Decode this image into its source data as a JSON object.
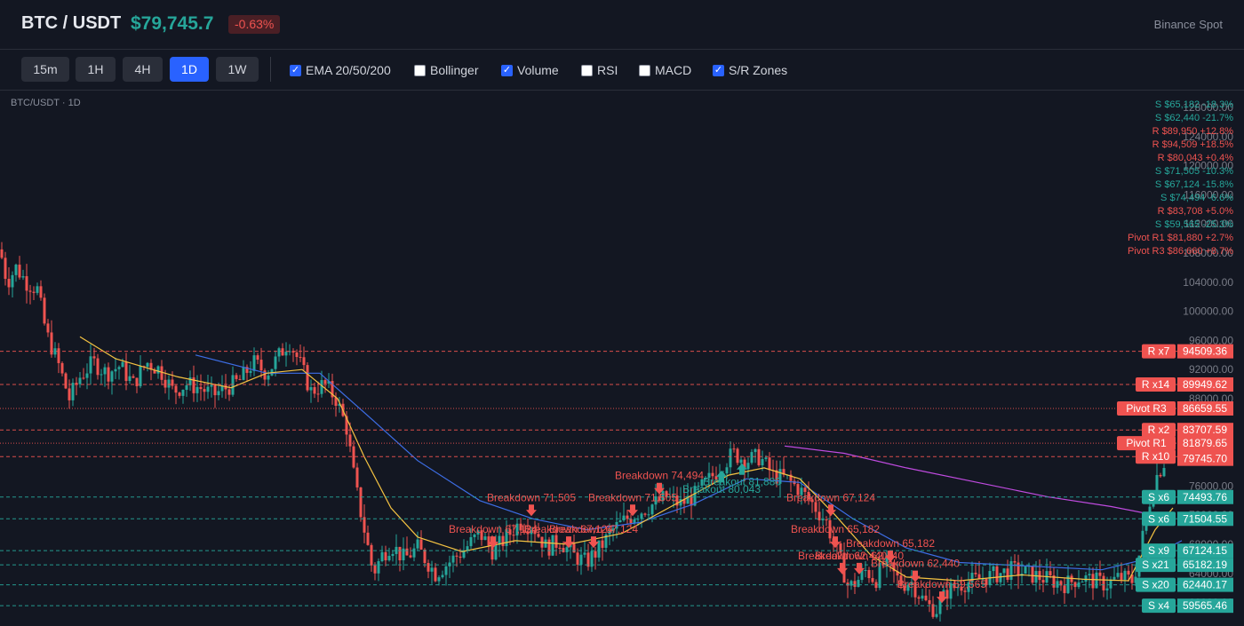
{
  "header": {
    "pair": "BTC / USDT",
    "price": "$79,745.7",
    "change": "-0.63%",
    "exchange": "Binance Spot"
  },
  "toolbar": {
    "timeframes": [
      {
        "label": "15m",
        "active": false
      },
      {
        "label": "1H",
        "active": false
      },
      {
        "label": "4H",
        "active": false
      },
      {
        "label": "1D",
        "active": true
      },
      {
        "label": "1W",
        "active": false
      }
    ],
    "indicators": [
      {
        "label": "EMA 20/50/200",
        "checked": true
      },
      {
        "label": "Bollinger",
        "checked": false
      },
      {
        "label": "Volume",
        "checked": true
      },
      {
        "label": "RSI",
        "checked": false
      },
      {
        "label": "MACD",
        "checked": false
      },
      {
        "label": "S/R Zones",
        "checked": true
      }
    ]
  },
  "chart_label": "BTC/USDT · 1D",
  "colors": {
    "up": "#26a69a",
    "down": "#ef5350",
    "ema20": "#f5c342",
    "ema50": "#3d6ee6",
    "ema200": "#c04be0",
    "background": "#131722"
  },
  "chart_data": {
    "type": "candlestick",
    "yticks": [
      128000,
      124000,
      120000,
      116000,
      112000,
      108000,
      104000,
      100000,
      96000,
      92000,
      88000,
      84000,
      80000,
      76000,
      72000,
      68000,
      64000,
      60000
    ],
    "ytick_labels": [
      "128000.00",
      "124000.00",
      "120000.00",
      "116000.00",
      "112000.00",
      "108000.00",
      "104000.00",
      "100000.00",
      "96000.00",
      "92000.00",
      "88000.00",
      "84000.00",
      "80000.00",
      "76000.00",
      "72000.00",
      "68000.00",
      "64000.00",
      "60000.00"
    ],
    "last_price": 79745.7,
    "last_price_label": "79745.70",
    "close_path": [
      [
        0,
        108500
      ],
      [
        8,
        104000
      ],
      [
        18,
        106000
      ],
      [
        30,
        104000
      ],
      [
        42,
        103000
      ],
      [
        52,
        97000
      ],
      [
        65,
        93000
      ],
      [
        78,
        88000
      ],
      [
        90,
        91000
      ],
      [
        105,
        93000
      ],
      [
        120,
        91500
      ],
      [
        135,
        92500
      ],
      [
        150,
        90000
      ],
      [
        165,
        93000
      ],
      [
        180,
        92000
      ],
      [
        195,
        89000
      ],
      [
        210,
        90000
      ],
      [
        225,
        89500
      ],
      [
        240,
        88500
      ],
      [
        255,
        89500
      ],
      [
        270,
        90500
      ],
      [
        285,
        93000
      ],
      [
        300,
        91500
      ],
      [
        312,
        93500
      ],
      [
        325,
        96000
      ],
      [
        337,
        93000
      ],
      [
        350,
        89000
      ],
      [
        365,
        90000
      ],
      [
        378,
        88000
      ],
      [
        390,
        84000
      ],
      [
        400,
        76000
      ],
      [
        410,
        70000
      ],
      [
        420,
        64000
      ],
      [
        430,
        66500
      ],
      [
        440,
        68000
      ],
      [
        455,
        66000
      ],
      [
        470,
        67500
      ],
      [
        490,
        64000
      ],
      [
        505,
        65500
      ],
      [
        520,
        67000
      ],
      [
        540,
        69500
      ],
      [
        555,
        67000
      ],
      [
        570,
        69000
      ],
      [
        585,
        71000
      ],
      [
        600,
        70500
      ],
      [
        615,
        67500
      ],
      [
        630,
        68500
      ],
      [
        645,
        66500
      ],
      [
        660,
        65500
      ],
      [
        675,
        67500
      ],
      [
        690,
        70000
      ],
      [
        705,
        71500
      ],
      [
        720,
        72500
      ],
      [
        735,
        73500
      ],
      [
        750,
        74500
      ],
      [
        765,
        73500
      ],
      [
        780,
        74500
      ],
      [
        795,
        76500
      ],
      [
        810,
        78500
      ],
      [
        825,
        80500
      ],
      [
        840,
        79500
      ],
      [
        855,
        80000
      ],
      [
        870,
        77500
      ],
      [
        885,
        77000
      ],
      [
        900,
        75500
      ],
      [
        915,
        73500
      ],
      [
        930,
        71000
      ],
      [
        945,
        66000
      ],
      [
        955,
        62000
      ],
      [
        965,
        63000
      ],
      [
        975,
        64500
      ],
      [
        985,
        63000
      ],
      [
        995,
        65500
      ],
      [
        1005,
        64000
      ],
      [
        1015,
        62500
      ],
      [
        1025,
        63000
      ],
      [
        1035,
        61000
      ],
      [
        1045,
        59500
      ],
      [
        1055,
        59000
      ],
      [
        1065,
        61500
      ],
      [
        1080,
        62500
      ],
      [
        1095,
        63000
      ],
      [
        1110,
        63500
      ],
      [
        1125,
        64000
      ],
      [
        1140,
        64500
      ],
      [
        1155,
        64000
      ],
      [
        1170,
        63500
      ],
      [
        1185,
        63000
      ],
      [
        1200,
        62500
      ],
      [
        1215,
        63500
      ],
      [
        1230,
        63000
      ],
      [
        1245,
        62500
      ],
      [
        1260,
        63500
      ],
      [
        1275,
        63000
      ],
      [
        1283,
        67000
      ],
      [
        1292,
        73000
      ],
      [
        1300,
        77000
      ],
      [
        1312,
        79745.7
      ]
    ],
    "ema20": [
      [
        90,
        96500
      ],
      [
        130,
        93500
      ],
      [
        200,
        91000
      ],
      [
        260,
        89500
      ],
      [
        300,
        91500
      ],
      [
        340,
        92000
      ],
      [
        380,
        88000
      ],
      [
        410,
        80000
      ],
      [
        440,
        73000
      ],
      [
        470,
        69000
      ],
      [
        520,
        67000
      ],
      [
        580,
        68500
      ],
      [
        640,
        68000
      ],
      [
        700,
        69500
      ],
      [
        760,
        73500
      ],
      [
        820,
        77500
      ],
      [
        860,
        78500
      ],
      [
        900,
        77000
      ],
      [
        940,
        72000
      ],
      [
        980,
        66500
      ],
      [
        1020,
        63500
      ],
      [
        1080,
        63000
      ],
      [
        1150,
        63800
      ],
      [
        1220,
        63200
      ],
      [
        1270,
        63000
      ],
      [
        1300,
        70000
      ],
      [
        1320,
        73000
      ]
    ],
    "ema50": [
      [
        220,
        94000
      ],
      [
        300,
        91500
      ],
      [
        360,
        91500
      ],
      [
        420,
        85000
      ],
      [
        470,
        79500
      ],
      [
        540,
        74000
      ],
      [
        600,
        71500
      ],
      [
        660,
        70000
      ],
      [
        720,
        71000
      ],
      [
        780,
        73500
      ],
      [
        840,
        77000
      ],
      [
        900,
        76500
      ],
      [
        960,
        71500
      ],
      [
        1020,
        67500
      ],
      [
        1080,
        65500
      ],
      [
        1160,
        65000
      ],
      [
        1240,
        64500
      ],
      [
        1290,
        66000
      ],
      [
        1330,
        68500
      ]
    ],
    "ema200": [
      [
        883,
        81500
      ],
      [
        950,
        80500
      ],
      [
        1020,
        78500
      ],
      [
        1100,
        76500
      ],
      [
        1180,
        74500
      ],
      [
        1250,
        73200
      ],
      [
        1300,
        72000
      ]
    ],
    "sr_levels": [
      {
        "price": 94509.36,
        "price_label": "94509.36",
        "tag": "R x7",
        "kind": "R"
      },
      {
        "price": 89949.62,
        "price_label": "89949.62",
        "tag": "R x14",
        "kind": "R"
      },
      {
        "price": 86659.55,
        "price_label": "86659.55",
        "tag": "Pivot R3",
        "kind": "P"
      },
      {
        "price": 83707.59,
        "price_label": "83707.59",
        "tag": "R x2",
        "kind": "R"
      },
      {
        "price": 81879.65,
        "price_label": "81879.65",
        "tag": "Pivot R1",
        "kind": "P"
      },
      {
        "price": 80042.83,
        "price_label": "80042.83",
        "tag": "R x10",
        "kind": "R"
      },
      {
        "price": 74493.76,
        "price_label": "74493.76",
        "tag": "S x6",
        "kind": "S"
      },
      {
        "price": 71504.55,
        "price_label": "71504.55",
        "tag": "S x6",
        "kind": "S"
      },
      {
        "price": 67124.15,
        "price_label": "67124.15",
        "tag": "S x9",
        "kind": "S"
      },
      {
        "price": 65182.19,
        "price_label": "65182.19",
        "tag": "S x21",
        "kind": "S"
      },
      {
        "price": 62440.17,
        "price_label": "62440.17",
        "tag": "S x20",
        "kind": "S"
      },
      {
        "price": 59565.46,
        "price_label": "59565.46",
        "tag": "S x4",
        "kind": "S"
      }
    ],
    "zone_list": [
      {
        "text": "S $65,182 -18.3%",
        "kind": "S"
      },
      {
        "text": "S $62,440 -21.7%",
        "kind": "S"
      },
      {
        "text": "R $89,950 +12.8%",
        "kind": "R"
      },
      {
        "text": "R $94,509 +18.5%",
        "kind": "R"
      },
      {
        "text": "R $80,043 +0.4%",
        "kind": "R"
      },
      {
        "text": "S $71,505 -10.3%",
        "kind": "S"
      },
      {
        "text": "S $67,124 -15.8%",
        "kind": "S"
      },
      {
        "text": "S $74,494 -6.6%",
        "kind": "S"
      },
      {
        "text": "R $83,708 +5.0%",
        "kind": "R"
      },
      {
        "text": "S $59,565 -25.3%",
        "kind": "S"
      },
      {
        "text": "Pivot R1 $81,880 +2.7%",
        "kind": "P"
      },
      {
        "text": "Pivot R3 $86,660 +8.7%",
        "kind": "P"
      }
    ],
    "signals": [
      {
        "text": "Breakdown 71,505",
        "x": 598,
        "price": 71505,
        "dir": "down"
      },
      {
        "text": "Breakdown 67,124",
        "x": 555,
        "price": 67124,
        "dir": "down"
      },
      {
        "text": "Breakdown 67,124",
        "x": 640,
        "price": 67124,
        "dir": "down"
      },
      {
        "text": "Breakdown 67,124",
        "x": 668,
        "price": 67124,
        "dir": "down"
      },
      {
        "text": "Breakdown 71,505",
        "x": 712,
        "price": 71505,
        "dir": "down"
      },
      {
        "text": "Breakdown 74,494",
        "x": 742,
        "price": 74494,
        "dir": "down"
      },
      {
        "text": "Breakout 80,043",
        "x": 812,
        "price": 78500,
        "dir": "up"
      },
      {
        "text": "Breakout 81,880",
        "x": 835,
        "price": 79500,
        "dir": "up"
      },
      {
        "text": "Breakdown 67,124",
        "x": 935,
        "price": 71505,
        "dir": "down"
      },
      {
        "text": "Breakdown 65,182",
        "x": 940,
        "price": 67124,
        "dir": "down"
      },
      {
        "text": "Breakdown 65,182",
        "x": 1002,
        "price": 65182,
        "dir": "down"
      },
      {
        "text": "Breakdown 62,440",
        "x": 948,
        "price": 63500,
        "dir": "down"
      },
      {
        "text": "Breakdown 62,440",
        "x": 967,
        "price": 63500,
        "dir": "down"
      },
      {
        "text": "Breakdown 62,440",
        "x": 1030,
        "price": 62440,
        "dir": "down"
      },
      {
        "text": "Breakdown 59,565",
        "x": 1060,
        "price": 59565,
        "dir": "down"
      }
    ]
  }
}
